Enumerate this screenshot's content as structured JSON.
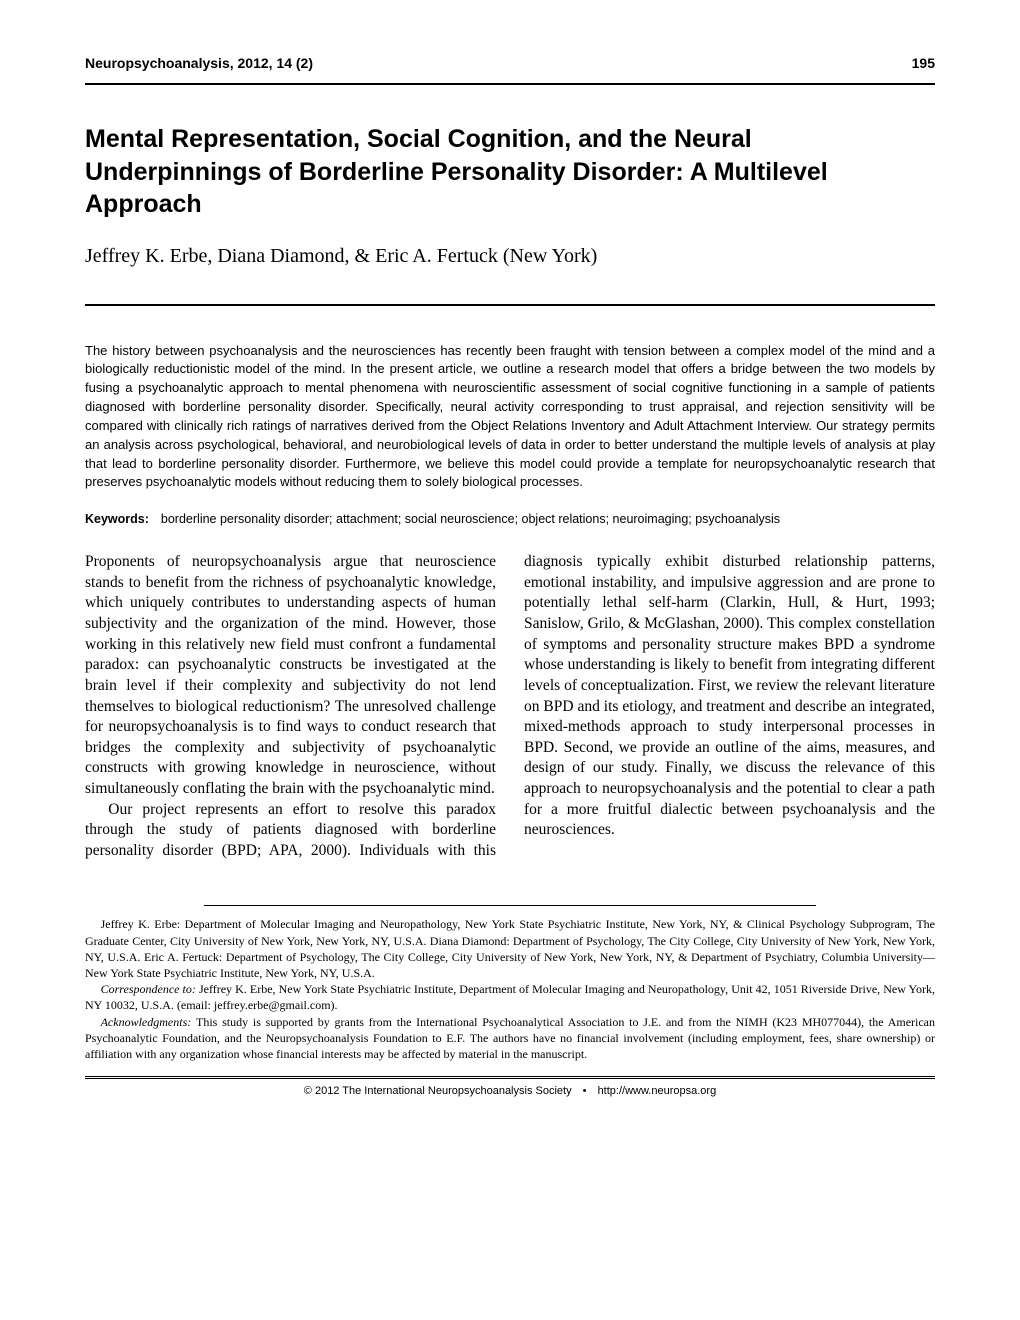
{
  "header": {
    "journal": "Neuropsychoanalysis, 2012, 14 (2)",
    "page": "195"
  },
  "title": "Mental Representation, Social Cognition, and the Neural Underpinnings of Borderline Personality Disorder: A Multilevel Approach",
  "authors": "Jeffrey K. Erbe, Diana Diamond, & Eric A. Fertuck (New York)",
  "abstract": "The history between psychoanalysis and the neurosciences has recently been fraught with tension between a complex model of the mind and a biologically reductionistic model of the mind. In the present article, we outline a research model that offers a bridge between the two models by fusing a psychoanalytic approach to mental phenomena with neuroscientific assessment of social cognitive functioning in a sample of patients diagnosed with borderline personality disorder. Specifically, neural activity corresponding to trust appraisal, and rejection sensitivity will be compared with clinically rich ratings of narratives derived from the Object Relations Inventory and Adult Attachment Interview. Our strategy permits an analysis across psychological, behavioral, and neurobiological levels of data in order to better understand the multiple levels of analysis at play that lead to borderline personality disorder. Furthermore, we believe this model could provide a template for neuropsychoanalytic research that preserves psychoanalytic models without reducing them to solely biological processes.",
  "keywords": {
    "label": "Keywords:",
    "text": "borderline personality disorder; attachment; social neuroscience; object relations; neuroimaging; psychoanalysis"
  },
  "body": {
    "p1": "Proponents of neuropsychoanalysis argue that neuroscience stands to benefit from the richness of psychoanalytic knowledge, which uniquely contributes to understanding aspects of human subjectivity and the organization of the mind. However, those working in this relatively new field must confront a fundamental paradox: can psychoanalytic constructs be investigated at the brain level if their complexity and subjectivity do not lend themselves to biological reductionism? The unresolved challenge for neuropsychoanalysis is to find ways to conduct research that bridges the complexity and subjectivity of psychoanalytic constructs with growing knowledge in neuroscience, without simultaneously conflating the brain with the psychoanalytic mind.",
    "p2": "Our project represents an effort to resolve this paradox through the study of patients diagnosed with borderline personality disorder (BPD; APA, 2000). Individuals with this diagnosis typically exhibit disturbed relationship patterns, emotional instability, and impulsive aggression and are prone to potentially lethal self-harm (Clarkin, Hull, & Hurt, 1993; Sanislow, Grilo, & McGlashan, 2000). This complex constellation of symptoms and personality structure makes BPD a syndrome whose understanding is likely to benefit from integrating different levels of conceptualization. First, we review the relevant literature on BPD and its etiology, and treatment and describe an integrated, mixed-methods approach to study interpersonal processes in BPD. Second, we provide an outline of the aims, measures, and design of our study. Finally, we discuss the relevance of this approach to neuropsychoanalysis and the potential to clear a path for a more fruitful dialectic between psychoanalysis and the neurosciences."
  },
  "footnotes": {
    "affiliations": "Jeffrey K. Erbe: Department of Molecular Imaging and Neuropathology, New York State Psychiatric Institute, New York, NY, & Clinical Psychology Subprogram, The Graduate Center, City University of New York, New York, NY, U.S.A.   Diana Diamond: Department of Psychology, The City College, City University of New York, New York, NY, U.S.A.   Eric A. Fertuck: Department of Psychology, The City College, City University of New York, New York, NY, & Department of Psychiatry, Columbia University—New York State Psychiatric Institute, New York, NY, U.S.A.",
    "correspondence_label": "Correspondence to: ",
    "correspondence": "Jeffrey K. Erbe, New York State Psychiatric Institute, Department of Molecular Imaging and Neuropathology, Unit 42, 1051 Riverside Drive, New York, NY 10032, U.S.A. (email: jeffrey.erbe@gmail.com).",
    "ack_label": "Acknowledgments: ",
    "acknowledgments": "This study is supported by grants from the International Psychoanalytical Association to J.E. and from the NIMH (K23 MH077044), the American Psychoanalytic Foundation, and the Neuropsychoanalysis Foundation to E.F. The authors have no financial involvement (including employment, fees, share ownership) or affiliation with any organization whose financial interests may be affected by material in the manuscript."
  },
  "footer": {
    "copyright": "© 2012 The International Neuropsychoanalysis Society",
    "url": "http://www.neuropsa.org"
  }
}
